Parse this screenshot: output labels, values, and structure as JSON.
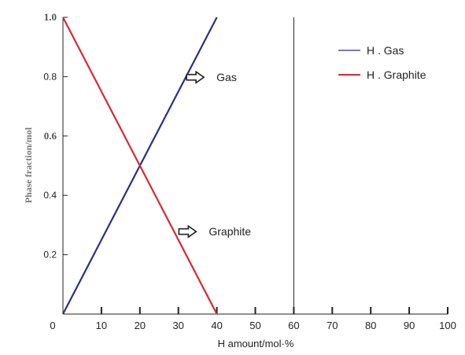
{
  "chart_data": {
    "type": "line",
    "title": "",
    "xlabel": "H amount/mol·%",
    "ylabel": "Phase fraction/mol",
    "xlim": [
      0,
      100
    ],
    "ylim": [
      0,
      1.0
    ],
    "x_ticks": [
      "0",
      "10",
      "20",
      "30",
      "40",
      "50",
      "60",
      "70",
      "80",
      "90",
      "100"
    ],
    "y_ticks": [
      "0.2",
      "0.4",
      "0.6",
      "0.8",
      "1.0"
    ],
    "grid": false,
    "legend_placement": "top-right",
    "series": [
      {
        "name": "H . Gas",
        "color": "#2b2f86",
        "x": [
          0,
          40
        ],
        "y": [
          0,
          1.0
        ]
      },
      {
        "name": "H . Graphite",
        "color": "#d42a36",
        "x": [
          0,
          40
        ],
        "y": [
          1.0,
          0
        ]
      }
    ],
    "vertical_line_x": 60,
    "annotations": [
      {
        "text": "Gas",
        "x": 35,
        "y": 0.79
      },
      {
        "text": "Graphite",
        "x": 33,
        "y": 0.27
      }
    ]
  }
}
